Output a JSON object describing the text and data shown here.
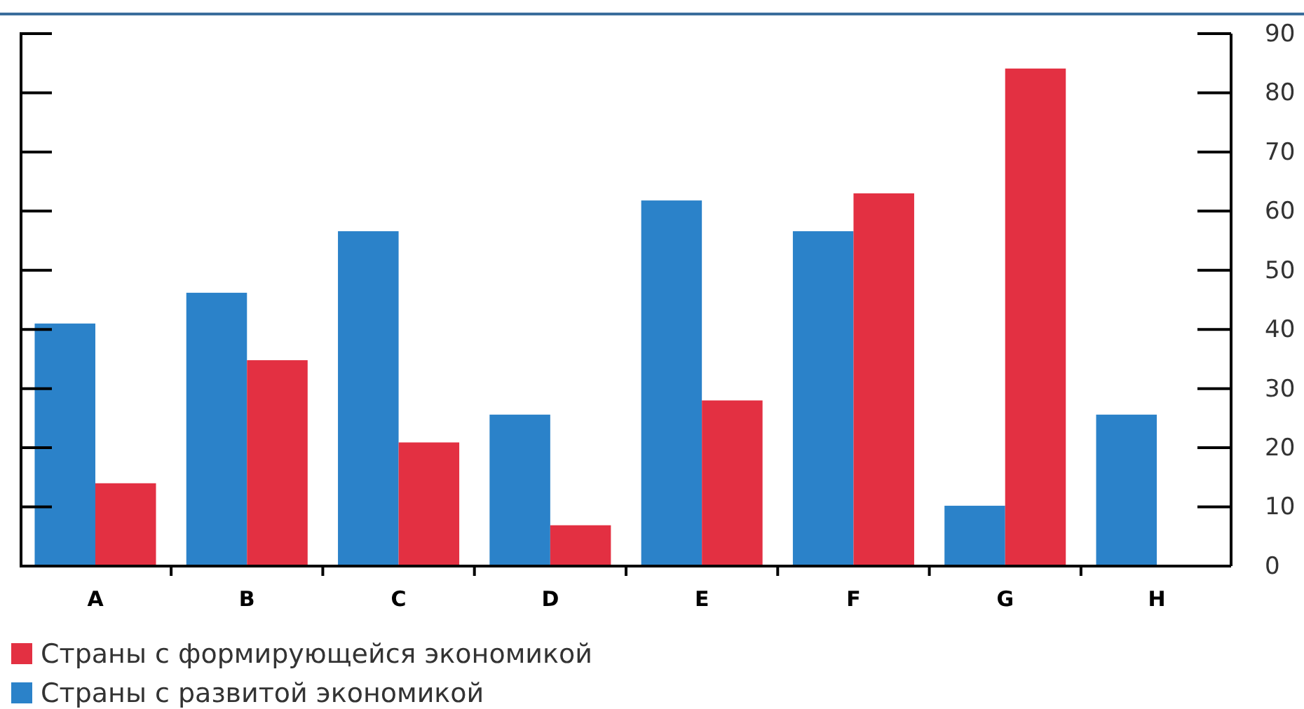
{
  "chart_data": {
    "type": "bar",
    "categories": [
      "A",
      "B",
      "C",
      "D",
      "E",
      "F",
      "G",
      "H"
    ],
    "series": [
      {
        "name": "Страны с развитой экономикой",
        "color": "#2b82c9",
        "values": [
          41,
          46.2,
          56.6,
          25.6,
          61.8,
          56.6,
          10.2,
          25.6
        ]
      },
      {
        "name": "Страны с формирующейся экономикой",
        "color": "#e33042",
        "values": [
          14,
          34.8,
          20.9,
          6.9,
          28,
          63,
          84.1,
          null
        ]
      }
    ],
    "ylim": [
      0,
      90
    ],
    "yticks": [
      0,
      10,
      20,
      30,
      40,
      50,
      60,
      70,
      80,
      90
    ],
    "grid": false,
    "legend": "bottom left"
  }
}
